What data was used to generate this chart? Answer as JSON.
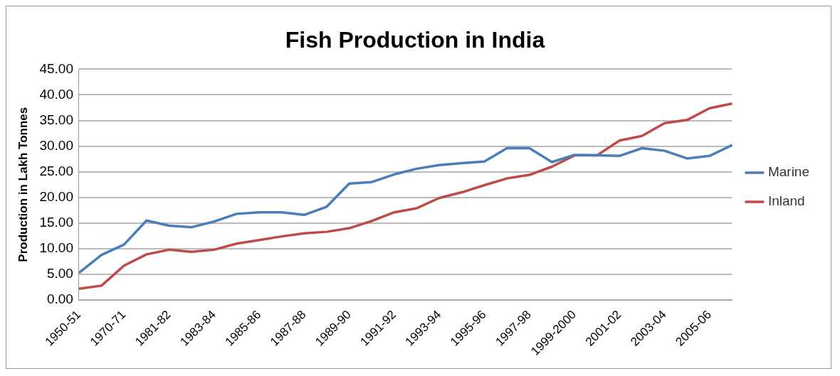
{
  "chart_data": {
    "type": "line",
    "title": "Fish Production in India",
    "ylabel": "Production in Lakh Tonnes",
    "categories": [
      "1950-51",
      null,
      "1970-71",
      null,
      "1981-82",
      null,
      "1983-84",
      null,
      "1985-86",
      null,
      "1987-88",
      null,
      "1989-90",
      null,
      "1991-92",
      null,
      "1993-94",
      null,
      "1995-96",
      null,
      "1997-98",
      null,
      "1999-2000",
      null,
      "2001-02",
      null,
      "2003-04",
      null,
      "2005-06",
      null
    ],
    "series": [
      {
        "name": "Marine",
        "color": "#4a7ebb",
        "values": [
          5.3,
          8.8,
          10.8,
          15.5,
          14.5,
          14.2,
          15.3,
          16.8,
          17.1,
          17.1,
          16.6,
          18.2,
          22.7,
          23.0,
          24.5,
          25.6,
          26.3,
          26.7,
          27.0,
          29.6,
          29.6,
          26.9,
          28.3,
          28.2,
          28.1,
          29.6,
          29.1,
          27.6,
          28.1,
          30.2
        ]
      },
      {
        "name": "Inland",
        "color": "#be4b48",
        "values": [
          2.2,
          2.8,
          6.7,
          8.9,
          9.8,
          9.4,
          9.8,
          11.0,
          11.7,
          12.4,
          13.0,
          13.3,
          14.0,
          15.4,
          17.1,
          17.9,
          19.9,
          21.0,
          22.4,
          23.7,
          24.4,
          26.0,
          28.2,
          28.2,
          31.1,
          32.0,
          34.5,
          35.1,
          37.4,
          38.3
        ]
      }
    ],
    "ylim": [
      0,
      45
    ],
    "yticks": [
      {
        "value": 0,
        "label": "0.00"
      },
      {
        "value": 5,
        "label": "5.00"
      },
      {
        "value": 10,
        "label": "10.00"
      },
      {
        "value": 15,
        "label": "15.00"
      },
      {
        "value": 20,
        "label": "20.00"
      },
      {
        "value": 25,
        "label": "25.00"
      },
      {
        "value": 30,
        "label": "30.00"
      },
      {
        "value": 35,
        "label": "35.00"
      },
      {
        "value": 40,
        "label": "40.00"
      },
      {
        "value": 45,
        "label": "45.00"
      }
    ],
    "grid": "y",
    "legend": "right",
    "marker": "none",
    "line_style": "solid"
  }
}
